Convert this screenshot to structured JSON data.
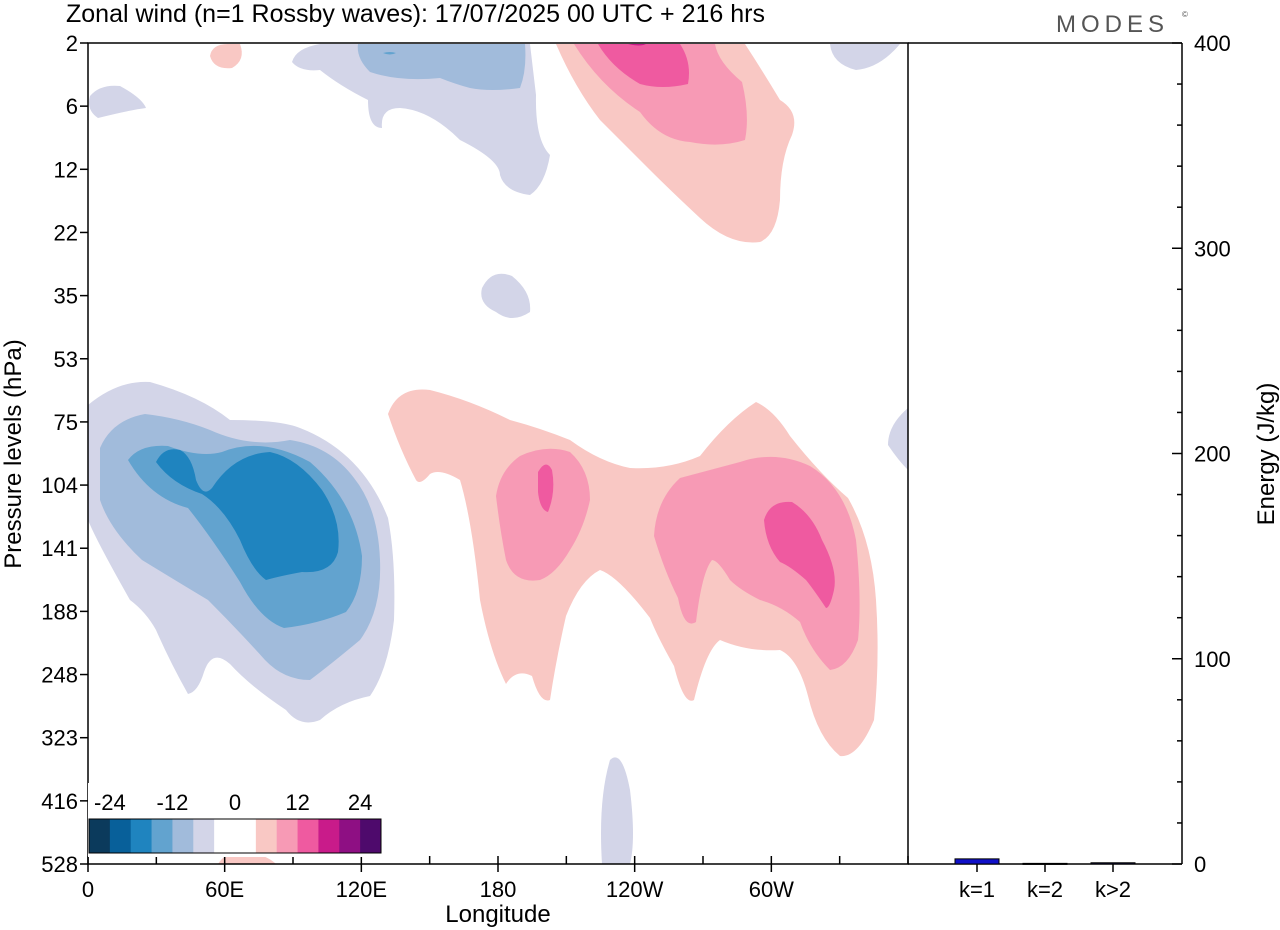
{
  "header": {
    "title": "Zonal wind (n=1 Rossby waves):  17/07/2025  00 UTC  + 216 hrs",
    "brand": "MODES",
    "brand_mark": "©"
  },
  "chart_data": [
    {
      "type": "heatmap",
      "title": "Zonal wind (n=1 Rossby waves):  17/07/2025  00 UTC  + 216 hrs",
      "xlabel": "Longitude",
      "ylabel": "Pressure levels (hPa)",
      "x_ticks": [
        "0",
        "60E",
        "120E",
        "180",
        "120W",
        "60W"
      ],
      "x_tick_degrees": [
        0,
        60,
        120,
        180,
        240,
        300
      ],
      "xlim_degrees": [
        0,
        360
      ],
      "y_ticks": [
        "2",
        "6",
        "12",
        "22",
        "35",
        "53",
        "75",
        "104",
        "141",
        "188",
        "248",
        "323",
        "416",
        "528"
      ],
      "y_scale": "model levels, top 2 hPa to bottom 528 hPa",
      "colorbar": {
        "tick_labels": [
          "-24",
          "-12",
          "0",
          "12",
          "24"
        ],
        "colors": [
          "#0b3a5c",
          "#08609a",
          "#1f84bf",
          "#62a3cf",
          "#a1bbdb",
          "#d3d5e8",
          "#ffffff",
          "#ffffff",
          "#f9c8c4",
          "#f79ab5",
          "#ef5aa0",
          "#c91b8a",
          "#8e0f83",
          "#4e0a6c"
        ],
        "range": [
          -28,
          28
        ]
      },
      "grid": false,
      "features": [
        {
          "sign": "negative",
          "longitude_range": [
            0,
            110
          ],
          "pressure_range_hPa": [
            75,
            323
          ],
          "extreme_ms": -20
        },
        {
          "sign": "positive",
          "longitude_range": [
            120,
            315
          ],
          "pressure_range_hPa": [
            75,
            323
          ],
          "extreme_ms": 16
        },
        {
          "sign": "negative",
          "longitude_range": [
            75,
            185
          ],
          "pressure_range_hPa": [
            2,
            12
          ],
          "extreme_ms": -12
        },
        {
          "sign": "positive",
          "longitude_range": [
            185,
            280
          ],
          "pressure_range_hPa": [
            2,
            22
          ],
          "extreme_ms": 20
        }
      ]
    },
    {
      "type": "bar",
      "ylabel": "Energy (J/kg)",
      "categories": [
        "k=1",
        "k=2",
        "k>2"
      ],
      "values": [
        2.5,
        0.3,
        0.6
      ],
      "ylim": [
        0,
        400
      ],
      "y_ticks": [
        "0",
        "100",
        "200",
        "300",
        "400"
      ],
      "bar_colors": [
        "#1010c8",
        "#101060",
        "#101060"
      ]
    }
  ]
}
